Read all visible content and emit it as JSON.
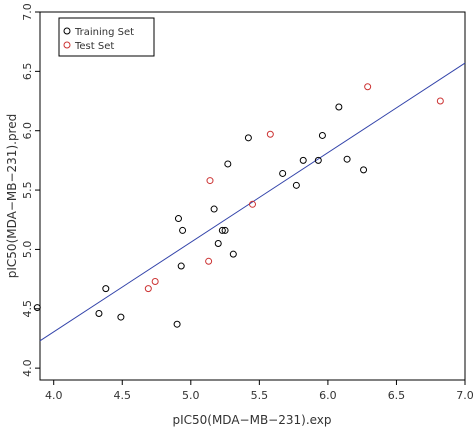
{
  "chart_data": {
    "type": "scatter",
    "xlabel": "pIC50(MDA−MB−231).exp",
    "ylabel": "pIC50(MDA−MB−231).pred",
    "xlim": [
      3.9,
      7.0
    ],
    "ylim": [
      3.9,
      7.0
    ],
    "x_ticks": [
      "4.0",
      "4.5",
      "5.0",
      "5.5",
      "6.0",
      "6.5",
      "7.0"
    ],
    "y_ticks": [
      "4.0",
      "4.5",
      "5.0",
      "5.5",
      "6.0",
      "6.5",
      "7.0"
    ],
    "legend_position": "top-left",
    "grid": false,
    "colors": {
      "training": "#000000",
      "test": "#cc3333",
      "fit_line": "#3344aa",
      "frame": "#000000"
    },
    "series": [
      {
        "name": "Training Set",
        "marker": "open-circle",
        "points": [
          {
            "x": 3.88,
            "y": 4.51
          },
          {
            "x": 4.33,
            "y": 4.46
          },
          {
            "x": 4.38,
            "y": 4.67
          },
          {
            "x": 4.49,
            "y": 4.43
          },
          {
            "x": 4.9,
            "y": 4.37
          },
          {
            "x": 4.91,
            "y": 5.26
          },
          {
            "x": 4.93,
            "y": 4.86
          },
          {
            "x": 4.94,
            "y": 5.16
          },
          {
            "x": 5.17,
            "y": 5.34
          },
          {
            "x": 5.2,
            "y": 5.05
          },
          {
            "x": 5.23,
            "y": 5.16
          },
          {
            "x": 5.25,
            "y": 5.16
          },
          {
            "x": 5.27,
            "y": 5.72
          },
          {
            "x": 5.31,
            "y": 4.96
          },
          {
            "x": 5.42,
            "y": 5.94
          },
          {
            "x": 5.67,
            "y": 5.64
          },
          {
            "x": 5.77,
            "y": 5.54
          },
          {
            "x": 5.82,
            "y": 5.75
          },
          {
            "x": 5.93,
            "y": 5.75
          },
          {
            "x": 5.96,
            "y": 5.96
          },
          {
            "x": 6.08,
            "y": 6.2
          },
          {
            "x": 6.14,
            "y": 5.76
          },
          {
            "x": 6.26,
            "y": 5.67
          }
        ]
      },
      {
        "name": "Test Set",
        "marker": "open-circle",
        "points": [
          {
            "x": 4.69,
            "y": 4.67
          },
          {
            "x": 4.74,
            "y": 4.73
          },
          {
            "x": 5.13,
            "y": 4.9
          },
          {
            "x": 5.14,
            "y": 5.58
          },
          {
            "x": 5.45,
            "y": 5.38
          },
          {
            "x": 5.58,
            "y": 5.97
          },
          {
            "x": 6.29,
            "y": 6.37
          },
          {
            "x": 6.82,
            "y": 6.25
          }
        ]
      }
    ],
    "fit_line": {
      "x": [
        3.9,
        7.0
      ],
      "y": [
        4.23,
        6.57
      ]
    }
  }
}
